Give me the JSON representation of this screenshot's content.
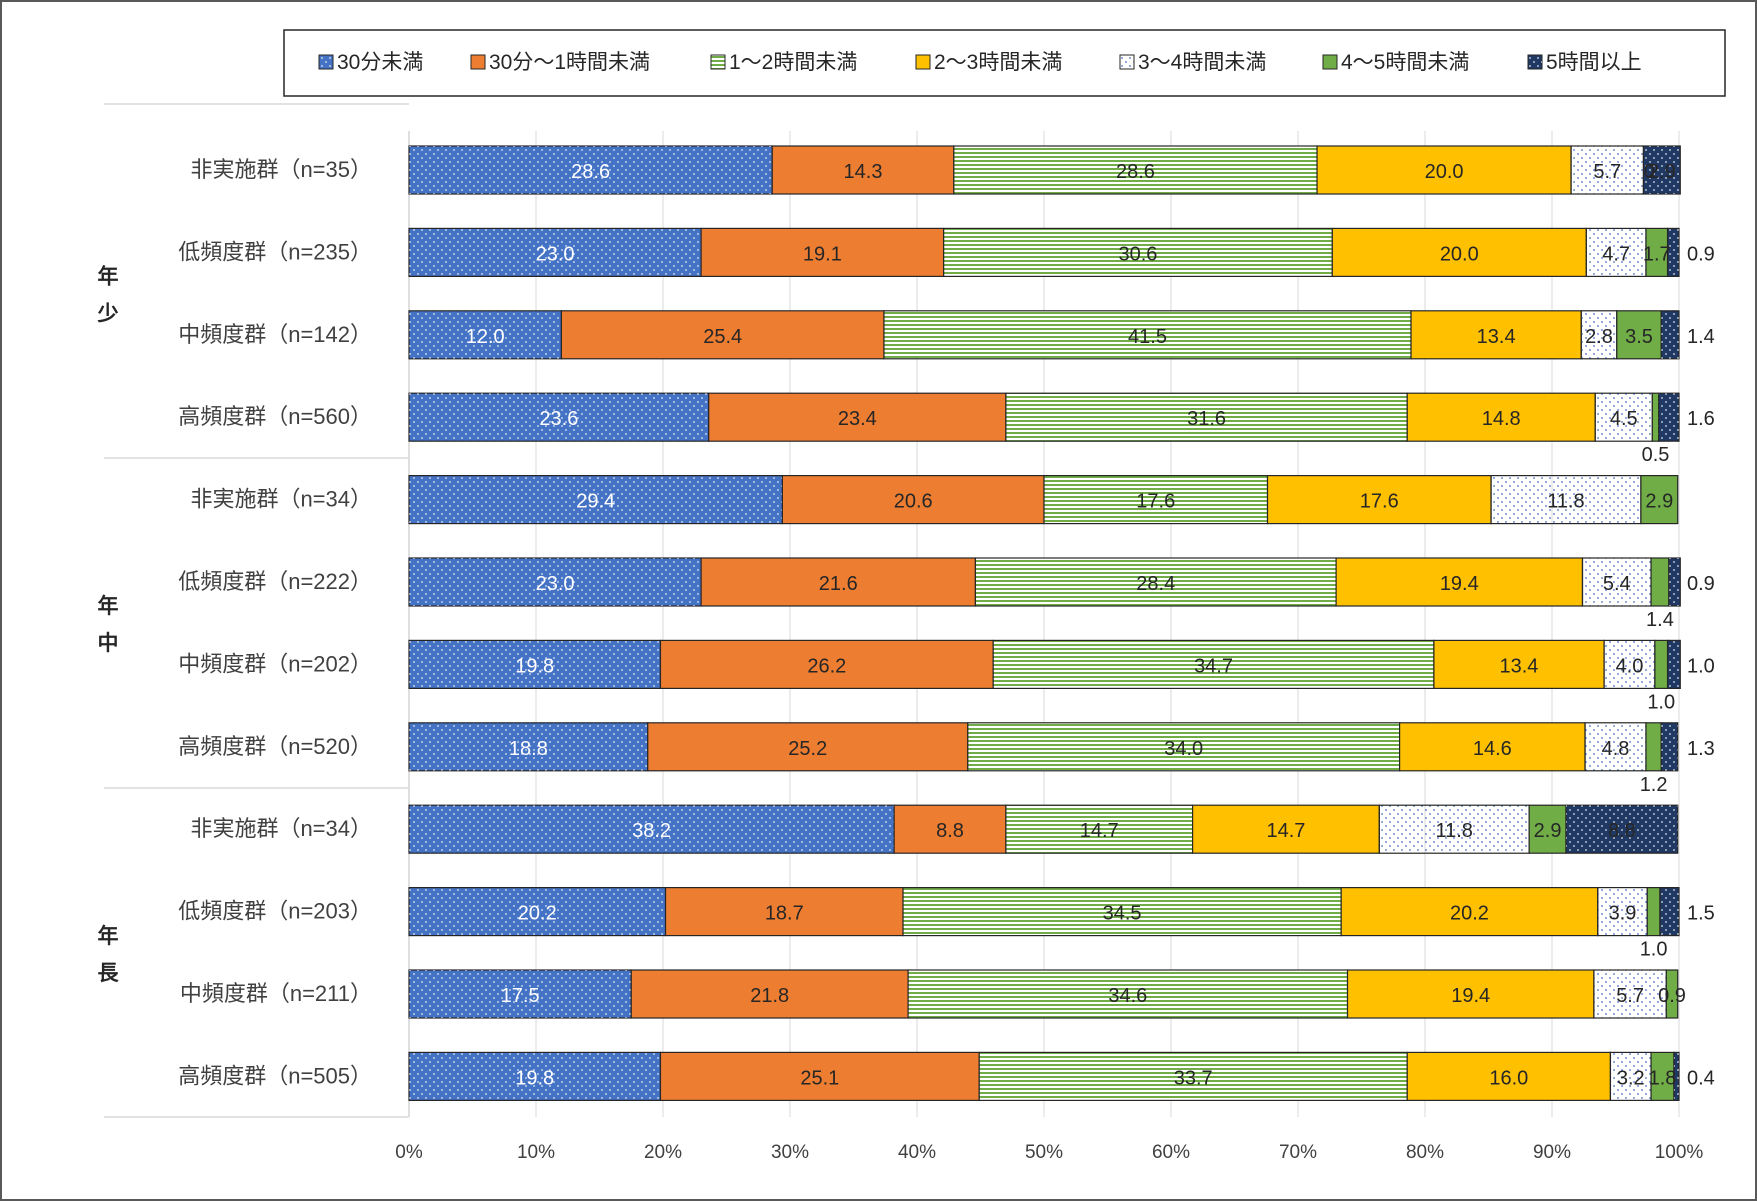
{
  "chart_data": {
    "type": "bar",
    "orientation": "horizontal",
    "stacked": true,
    "percent_scale": true,
    "legend_position": "top-right",
    "grid": true,
    "xlim": [
      0,
      100
    ],
    "xticks": [
      "0%",
      "10%",
      "20%",
      "30%",
      "40%",
      "50%",
      "60%",
      "70%",
      "80%",
      "90%",
      "100%"
    ],
    "groups": [
      {
        "label": "年少",
        "rows": 4
      },
      {
        "label": "年中",
        "rows": 4
      },
      {
        "label": "年長",
        "rows": 4
      }
    ],
    "categories": [
      "非実施群（n=35）",
      "低頻度群（n=235）",
      "中頻度群（n=142）",
      "高頻度群（n=560）",
      "非実施群（n=34）",
      "低頻度群（n=222）",
      "中頻度群（n=202）",
      "高頻度群（n=520）",
      "非実施群（n=34）",
      "低頻度群（n=203）",
      "中頻度群（n=211）",
      "高頻度群（n=505）"
    ],
    "series": [
      {
        "name": "30分未満",
        "color": "#4472C4",
        "pattern": "dots-white",
        "values": [
          28.6,
          23.0,
          12.0,
          23.6,
          29.4,
          23.0,
          19.8,
          18.8,
          38.2,
          20.2,
          17.5,
          19.8
        ],
        "labels": [
          "28.6",
          "23.0",
          "12.0",
          "23.6",
          "29.4",
          "23.0",
          "19.8",
          "18.8",
          "38.2",
          "20.2",
          "17.5",
          "19.8"
        ]
      },
      {
        "name": "30分～1時間未満",
        "color": "#ED7D31",
        "pattern": "solid",
        "values": [
          14.3,
          19.1,
          25.4,
          23.4,
          20.6,
          21.6,
          26.2,
          25.2,
          8.8,
          18.7,
          21.8,
          25.1
        ],
        "labels": [
          "14.3",
          "19.1",
          "25.4",
          "23.4",
          "20.6",
          "21.6",
          "26.2",
          "25.2",
          "8.8",
          "18.7",
          "21.8",
          "25.1"
        ]
      },
      {
        "name": "1～2時間未満",
        "color": "#70AD47",
        "pattern": "hstripes",
        "values": [
          28.6,
          30.6,
          41.5,
          31.6,
          17.6,
          28.4,
          34.7,
          34.0,
          14.7,
          34.5,
          34.6,
          33.7
        ],
        "labels": [
          "28.6",
          "30.6",
          "41.5",
          "31.6",
          "17.6",
          "28.4",
          "34.7",
          "34.0",
          "14.7",
          "34.5",
          "34.6",
          "33.7"
        ]
      },
      {
        "name": "2～3時間未満",
        "color": "#FFC000",
        "pattern": "solid",
        "values": [
          20.0,
          20.0,
          13.4,
          14.8,
          17.6,
          19.4,
          13.4,
          14.6,
          14.7,
          20.2,
          19.4,
          16.0
        ],
        "labels": [
          "20.0",
          "20.0",
          "13.4",
          "14.8",
          "17.6",
          "19.4",
          "13.4",
          "14.6",
          "14.7",
          "20.2",
          "19.4",
          "16.0"
        ]
      },
      {
        "name": "3～4時間未満",
        "color": "#FFFFFF",
        "pattern": "dots-blue",
        "values": [
          5.7,
          4.7,
          2.8,
          4.5,
          11.8,
          5.4,
          4.0,
          4.8,
          11.8,
          3.9,
          5.7,
          3.2
        ],
        "labels": [
          "5.7",
          "4.7",
          "2.8",
          "4.5",
          "11.8",
          "5.4",
          "4.0",
          "4.8",
          "11.8",
          "3.9",
          "5.7",
          "3.2"
        ]
      },
      {
        "name": "4～5時間未満",
        "color": "#70AD47",
        "pattern": "solid",
        "values": [
          0.0,
          1.7,
          3.5,
          0.5,
          2.9,
          1.4,
          1.0,
          1.2,
          2.9,
          1.0,
          0.9,
          1.8
        ],
        "labels": [
          "0",
          "1.7",
          "3.5",
          "0.5",
          "2.9",
          "1.4",
          "1.0",
          "1.2",
          "2.9",
          "1.0",
          "0.9",
          "1.8"
        ],
        "label_side": [
          "inside",
          "inside",
          "inside",
          "below",
          "inside",
          "below",
          "below",
          "below",
          "inside",
          "below",
          "inside",
          "inside"
        ]
      },
      {
        "name": "5時間以上",
        "color": "#203864",
        "pattern": "dots-white",
        "values": [
          2.9,
          0.9,
          1.4,
          1.6,
          0.0,
          0.9,
          1.0,
          1.3,
          8.8,
          1.5,
          0.0,
          0.4
        ],
        "labels": [
          "2.9",
          "0.9",
          "1.4",
          "1.6",
          "",
          "0.9",
          "1.0",
          "1.3",
          "8.8",
          "1.5",
          "",
          "0.4"
        ],
        "label_side": [
          "inside",
          "right",
          "right",
          "right",
          "none",
          "right",
          "right",
          "right",
          "inside",
          "right",
          "none",
          "right"
        ]
      }
    ]
  }
}
